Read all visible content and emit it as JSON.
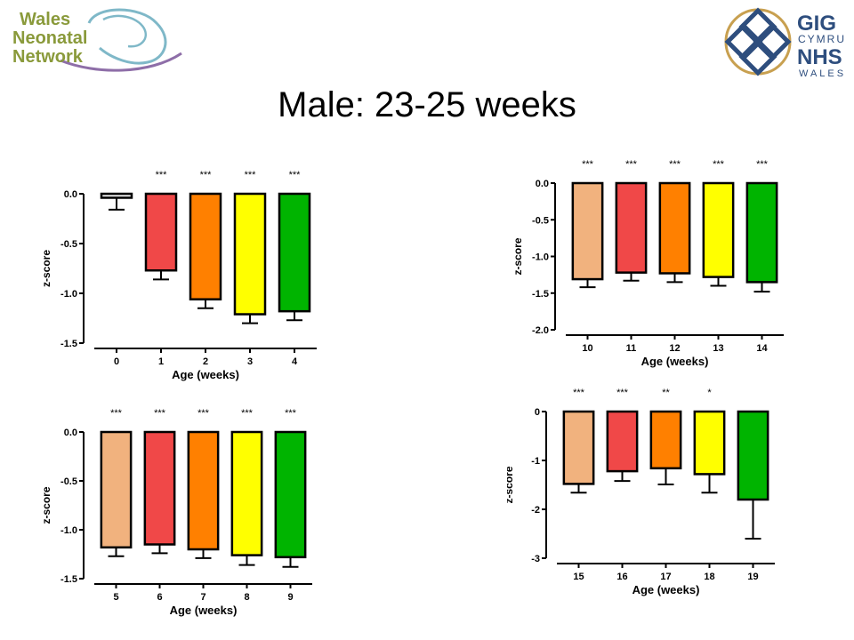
{
  "logos": {
    "left": {
      "lines": [
        "Wales",
        "Neonatal",
        "Network"
      ],
      "colors": {
        "text": "#8a9a3b",
        "swirl": "#7fb8c8",
        "purple": "#8e6ea8"
      }
    },
    "right": {
      "lines": [
        "GIG",
        "CYMRU",
        "NHS",
        "WALES"
      ],
      "colors": {
        "knot": "#2e4e7e",
        "ring": "#c8a050",
        "text": "#2e4e7e"
      }
    }
  },
  "title": "Male: 23-25 weeks",
  "colors": {
    "tan": "#f1b27e",
    "red": "#f04848",
    "orange": "#ff8000",
    "yellow": "#ffff00",
    "green": "#00b400",
    "light_gray": "#e6e6e6"
  },
  "chart_data": [
    {
      "type": "bar",
      "xlabel": "Age (weeks)",
      "ylabel": "z-score",
      "categories": [
        "0",
        "1",
        "2",
        "3",
        "4"
      ],
      "values": [
        -0.04,
        -0.77,
        -1.06,
        -1.21,
        -1.18
      ],
      "errors": [
        0.12,
        0.09,
        0.09,
        0.09,
        0.09
      ],
      "bar_colors": [
        "light_gray",
        "red",
        "orange",
        "yellow",
        "green"
      ],
      "significance": [
        "",
        "***",
        "***",
        "***",
        "***"
      ],
      "ylim": [
        -1.5,
        0.0
      ],
      "yticks": [
        0.0,
        -0.5,
        -1.0,
        -1.5
      ],
      "ytick_labels": [
        "0.0",
        "-0.5",
        "-1.0",
        "-1.5"
      ]
    },
    {
      "type": "bar",
      "xlabel": "Age (weeks)",
      "ylabel": "z-score",
      "categories": [
        "10",
        "11",
        "12",
        "13",
        "14"
      ],
      "values": [
        -1.31,
        -1.22,
        -1.23,
        -1.28,
        -1.35
      ],
      "errors": [
        0.11,
        0.11,
        0.12,
        0.12,
        0.13
      ],
      "bar_colors": [
        "tan",
        "red",
        "orange",
        "yellow",
        "green"
      ],
      "significance": [
        "***",
        "***",
        "***",
        "***",
        "***"
      ],
      "ylim": [
        -2.0,
        0.0
      ],
      "yticks": [
        0.0,
        -0.5,
        -1.0,
        -1.5,
        -2.0
      ],
      "ytick_labels": [
        "0.0",
        "-0.5",
        "-1.0",
        "-1.5",
        "-2.0"
      ]
    },
    {
      "type": "bar",
      "xlabel": "Age (weeks)",
      "ylabel": "z-score",
      "categories": [
        "5",
        "6",
        "7",
        "8",
        "9"
      ],
      "values": [
        -1.18,
        -1.15,
        -1.2,
        -1.26,
        -1.28
      ],
      "errors": [
        0.09,
        0.09,
        0.09,
        0.1,
        0.1
      ],
      "bar_colors": [
        "tan",
        "red",
        "orange",
        "yellow",
        "green"
      ],
      "significance": [
        "***",
        "***",
        "***",
        "***",
        "***"
      ],
      "ylim": [
        -1.5,
        0.0
      ],
      "yticks": [
        0.0,
        -0.5,
        -1.0,
        -1.5
      ],
      "ytick_labels": [
        "0.0",
        "-0.5",
        "-1.0",
        "-1.5"
      ]
    },
    {
      "type": "bar",
      "xlabel": "Age (weeks)",
      "ylabel": "z-score",
      "categories": [
        "15",
        "16",
        "17",
        "18",
        "19"
      ],
      "values": [
        -1.48,
        -1.22,
        -1.16,
        -1.28,
        -1.8
      ],
      "errors": [
        0.18,
        0.2,
        0.33,
        0.38,
        0.8
      ],
      "bar_colors": [
        "tan",
        "red",
        "orange",
        "yellow",
        "green"
      ],
      "significance": [
        "***",
        "***",
        "**",
        "*",
        ""
      ],
      "ylim": [
        -3,
        0
      ],
      "yticks": [
        0,
        -1,
        -2,
        -3
      ],
      "ytick_labels": [
        "0",
        "-1",
        "-2",
        "-3"
      ]
    }
  ]
}
